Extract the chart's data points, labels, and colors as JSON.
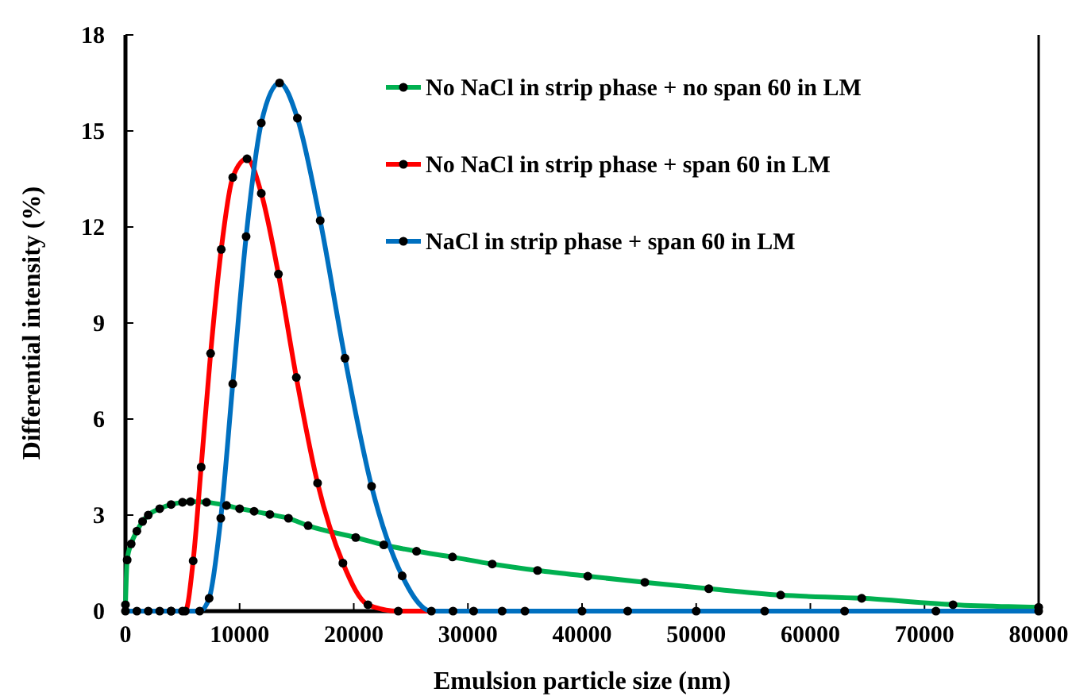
{
  "chart_data": {
    "type": "line",
    "xlabel": "Emulsion particle size (nm)",
    "ylabel": "Differential intensity (%)",
    "xlim": [
      0,
      80000
    ],
    "ylim": [
      0,
      18
    ],
    "xticks": [
      0,
      10000,
      20000,
      30000,
      40000,
      50000,
      60000,
      70000,
      80000
    ],
    "yticks": [
      0,
      3,
      6,
      9,
      12,
      15,
      18
    ],
    "grid": false,
    "legend": "top right",
    "marker": "circle",
    "line_style": "solid",
    "series": [
      {
        "name": "No NaCl in strip phase + no span 60 in LM",
        "color": "#00b050",
        "x": [
          0,
          150,
          500,
          1000,
          1500,
          2000,
          3000,
          4000,
          5000,
          5700,
          7100,
          8850,
          10000,
          11270,
          12650,
          14280,
          16000,
          20170,
          22630,
          25500,
          28650,
          32130,
          36100,
          40500,
          45500,
          51100,
          57400,
          64500,
          72500,
          80000
        ],
        "values": [
          0.2,
          1.6,
          2.1,
          2.5,
          2.8,
          3.0,
          3.2,
          3.33,
          3.4,
          3.42,
          3.4,
          3.3,
          3.2,
          3.12,
          3.02,
          2.9,
          2.67,
          2.3,
          2.07,
          1.87,
          1.69,
          1.47,
          1.27,
          1.09,
          0.9,
          0.7,
          0.5,
          0.4,
          0.2,
          0.12
        ]
      },
      {
        "name": "No NaCl in strip phase + span 60 in LM",
        "color": "#ff0000",
        "x": [
          4000,
          5240,
          5930,
          6630,
          7460,
          8390,
          9400,
          10650,
          11900,
          13400,
          14970,
          16830,
          19050,
          21240,
          23900,
          28700,
          33000
        ],
        "values": [
          0,
          0,
          1.57,
          4.5,
          8.05,
          11.3,
          13.55,
          14.13,
          13.05,
          10.53,
          7.3,
          4.0,
          1.5,
          0.2,
          0,
          0,
          0
        ]
      },
      {
        "name": "NaCl in strip phase + span 60 in LM",
        "color": "#0070c0",
        "x": [
          0,
          1000,
          2000,
          3000,
          4000,
          5000,
          6500,
          7330,
          8350,
          9400,
          10570,
          11900,
          13500,
          15060,
          17060,
          19230,
          21560,
          24240,
          26800,
          30500,
          35000,
          40000,
          44000,
          50000,
          56000,
          63000,
          71000,
          80000
        ],
        "values": [
          0,
          0,
          0,
          0,
          0,
          0,
          0,
          0.4,
          2.9,
          7.1,
          11.7,
          15.25,
          16.5,
          15.4,
          12.2,
          7.9,
          3.9,
          1.1,
          0,
          0,
          0,
          0,
          0,
          0,
          0,
          0,
          0,
          0
        ]
      }
    ]
  }
}
